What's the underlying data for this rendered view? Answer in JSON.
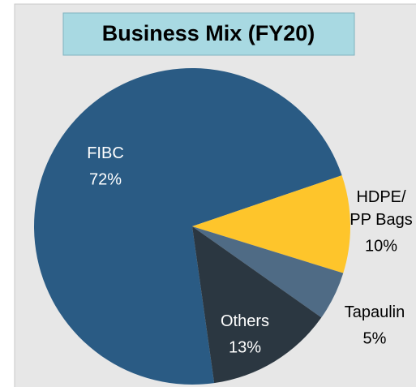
{
  "chart_data": {
    "type": "pie",
    "title": "Business Mix (FY20)",
    "categories": [
      "FIBC",
      "HDPE/\nPP Bags",
      "Tapaulin",
      "Others"
    ],
    "values": [
      72,
      10,
      5,
      13
    ],
    "value_labels": [
      "72%",
      "10%",
      "5%",
      "13%"
    ],
    "colors": [
      "#2a5b84",
      "#fec52b",
      "#4f6b85",
      "#2b3741"
    ]
  }
}
